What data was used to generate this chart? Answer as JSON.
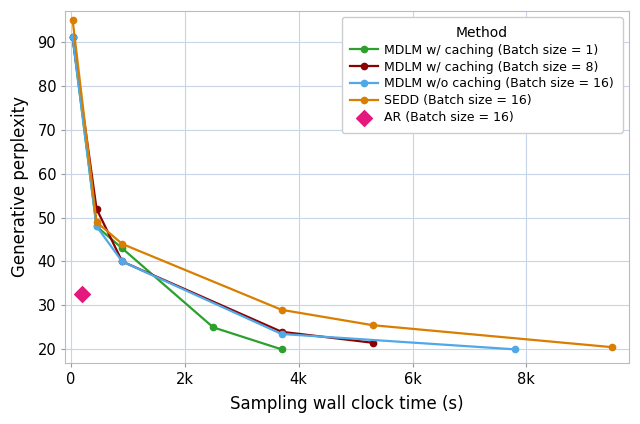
{
  "series": [
    {
      "label": "MDLM w/ caching (Batch size = 1)",
      "color": "#2ca02c",
      "marker": "o",
      "markersize": 4.5,
      "linewidth": 1.6,
      "x": [
        30,
        450,
        900,
        2500,
        3700
      ],
      "y": [
        91,
        48,
        43,
        25,
        20
      ]
    },
    {
      "label": "MDLM w/ caching (Batch size = 8)",
      "color": "#8b0000",
      "marker": "o",
      "markersize": 4.5,
      "linewidth": 1.6,
      "x": [
        30,
        450,
        900,
        3700,
        5300
      ],
      "y": [
        91,
        52,
        40,
        24,
        21.5
      ]
    },
    {
      "label": "MDLM w/o caching (Batch size = 16)",
      "color": "#4fa8e8",
      "marker": "o",
      "markersize": 4.5,
      "linewidth": 1.6,
      "x": [
        30,
        450,
        900,
        3700,
        7800
      ],
      "y": [
        91,
        48,
        40,
        23.5,
        20
      ]
    },
    {
      "label": "SEDD (Batch size = 16)",
      "color": "#d97e00",
      "marker": "o",
      "markersize": 4.5,
      "linewidth": 1.6,
      "x": [
        30,
        450,
        900,
        3700,
        5300,
        9500
      ],
      "y": [
        95,
        49,
        44,
        29,
        25.5,
        20.5
      ]
    }
  ],
  "ar_point": {
    "label": "AR (Batch size = 16)",
    "color": "#e3197e",
    "marker": "D",
    "markersize": 8,
    "x": [
      200
    ],
    "y": [
      32.5
    ]
  },
  "xlabel": "Sampling wall clock time (s)",
  "ylabel": "Generative perplexity",
  "xlim": [
    -100,
    9800
  ],
  "ylim": [
    17,
    97
  ],
  "xticks": [
    0,
    2000,
    4000,
    6000,
    8000
  ],
  "xticklabels": [
    "0",
    "2k",
    "4k",
    "6k",
    "8k"
  ],
  "yticks": [
    20,
    30,
    40,
    50,
    60,
    70,
    80,
    90
  ],
  "legend_title": "Method",
  "background_color": "#ffffff",
  "grid_color": "#c8d4e8",
  "grid_alpha": 1.0,
  "tick_fontsize": 10.5,
  "label_fontsize": 12
}
